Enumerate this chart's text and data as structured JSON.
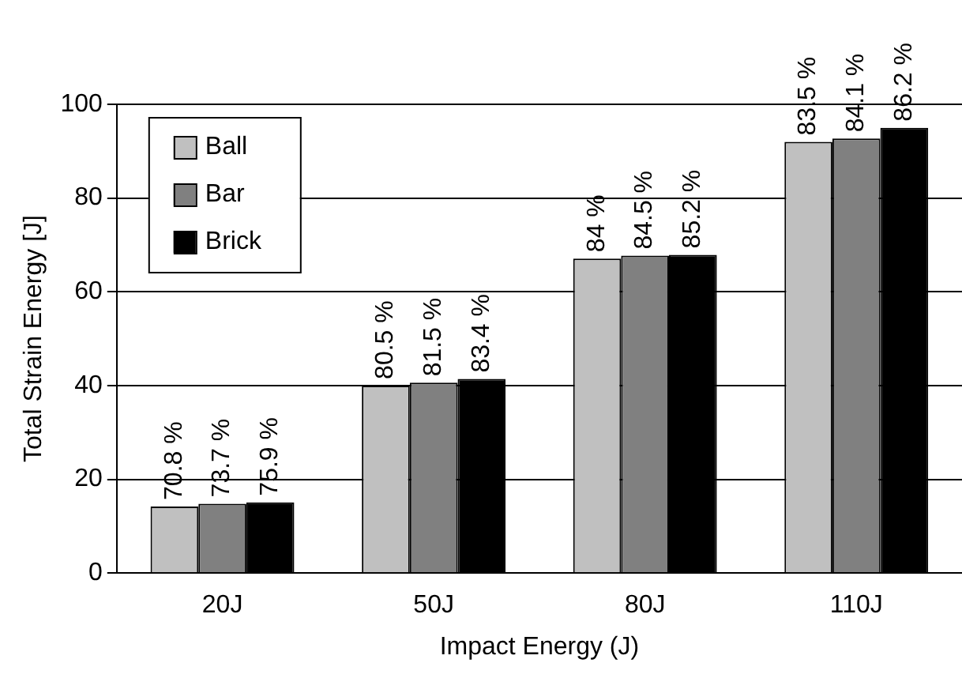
{
  "chart_data": {
    "type": "bar",
    "xlabel": "Impact Energy (J)",
    "ylabel": "Total Strain Energy [J]",
    "categories": [
      "20J",
      "50J",
      "80J",
      "110J"
    ],
    "series": [
      {
        "name": "Ball",
        "color": "#c0c0c0",
        "values": [
          14.2,
          40.0,
          67.1,
          92.0
        ]
      },
      {
        "name": "Bar",
        "color": "#808080",
        "values": [
          14.8,
          40.6,
          67.7,
          92.7
        ]
      },
      {
        "name": "Brick",
        "color": "#000000",
        "values": [
          15.1,
          41.4,
          67.9,
          95.0
        ]
      }
    ],
    "annotations": [
      "70.8 %",
      "73.7 %",
      "75.9 %",
      "80.5 %",
      "81.5 %",
      "83.4 %",
      "84 %",
      "84.5 %",
      "85.2 %",
      "83.5 %",
      "84.1 %",
      "86.2 %"
    ],
    "ylim": [
      0,
      100
    ],
    "yticks": [
      0,
      20,
      40,
      60,
      80,
      100
    ],
    "grid": "y",
    "legend": "top left"
  }
}
